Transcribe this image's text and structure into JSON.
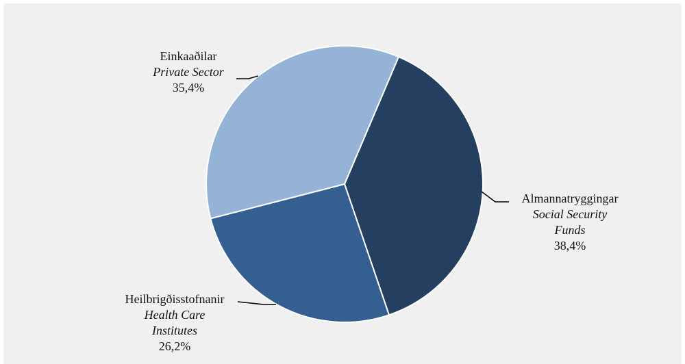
{
  "chart_data": {
    "type": "pie",
    "slices": [
      {
        "label_is": "Almannatryggingar",
        "label_en": "Social Security Funds",
        "value": 38.4,
        "value_label": "38,4%",
        "color": "#243f60"
      },
      {
        "label_is": "Heilbrigðisstofnanir",
        "label_en": "Health Care Institutes",
        "value": 26.2,
        "value_label": "26,2%",
        "color": "#355f91"
      },
      {
        "label_is": "Einkaaðilar",
        "label_en": "Private Sector",
        "value": 35.4,
        "value_label": "35,4%",
        "color": "#95b3d7"
      }
    ],
    "labels": {
      "almannatryggingar": {
        "line1": "Almannatryggingar",
        "line2": "Social Security",
        "line3": "Funds",
        "pct": "38,4%"
      },
      "heilbrigdisstofnanir": {
        "line1": "Heilbrigðisstofnanir",
        "line2": "Health Care",
        "line3": "Institutes",
        "pct": "26,2%"
      },
      "einkaadilar": {
        "line1": "Einkaaðilar",
        "line2": "Private Sector",
        "pct": "35,4%"
      }
    },
    "start_angle_deg": 23,
    "direction": "clockwise",
    "background": "#f0f0f0",
    "slice_border": "#ffffff"
  }
}
